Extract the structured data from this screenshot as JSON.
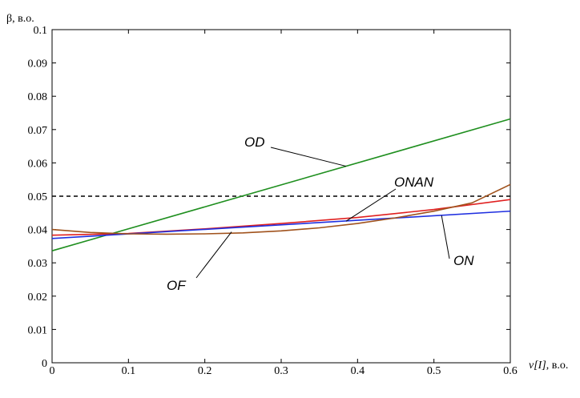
{
  "chart_data": {
    "type": "line",
    "ylabel": "β, в.о.",
    "xlabel_var": "v[I]",
    "xlabel_unit": ", в.о.",
    "xlim": [
      0,
      0.6
    ],
    "ylim": [
      0,
      0.1
    ],
    "x_ticks": [
      "0",
      "0.1",
      "0.2",
      "0.3",
      "0.4",
      "0.5",
      "0.6"
    ],
    "y_ticks": [
      "0",
      "0.01",
      "0.02",
      "0.03",
      "0.04",
      "0.05",
      "0.06",
      "0.07",
      "0.08",
      "0.09",
      "0.1"
    ],
    "grid": false,
    "reference_line": {
      "y": 0.05,
      "style": "dashed",
      "color": "#000000"
    },
    "series": [
      {
        "name": "OD",
        "color": "#1f8f1f",
        "x": [
          0,
          0.6
        ],
        "y": [
          0.0336,
          0.0732
        ]
      },
      {
        "name": "ONAN",
        "color": "#e02020",
        "x": [
          0,
          0.1,
          0.2,
          0.3,
          0.4,
          0.5,
          0.6
        ],
        "y": [
          0.0383,
          0.0388,
          0.0402,
          0.0418,
          0.0436,
          0.046,
          0.049
        ]
      },
      {
        "name": "ON",
        "color": "#1f2fe0",
        "x": [
          0,
          0.6
        ],
        "y": [
          0.0373,
          0.0455
        ]
      },
      {
        "name": "OF",
        "color": "#a0521c",
        "x": [
          0,
          0.05,
          0.1,
          0.15,
          0.2,
          0.25,
          0.3,
          0.35,
          0.4,
          0.45,
          0.5,
          0.55,
          0.6
        ],
        "y": [
          0.04,
          0.0391,
          0.0387,
          0.0386,
          0.0387,
          0.039,
          0.0396,
          0.0405,
          0.0418,
          0.0435,
          0.0455,
          0.048,
          0.0535
        ]
      }
    ],
    "annotations": [
      {
        "text": "OD",
        "series": "OD",
        "point": [
          0.385,
          0.059
        ]
      },
      {
        "text": "ONAN",
        "series": "ONAN",
        "point": [
          0.385,
          0.0425
        ]
      },
      {
        "text": "ON",
        "series": "ON",
        "point": [
          0.51,
          0.0442
        ]
      },
      {
        "text": "OF",
        "series": "OF",
        "point": [
          0.235,
          0.0393
        ]
      }
    ]
  }
}
